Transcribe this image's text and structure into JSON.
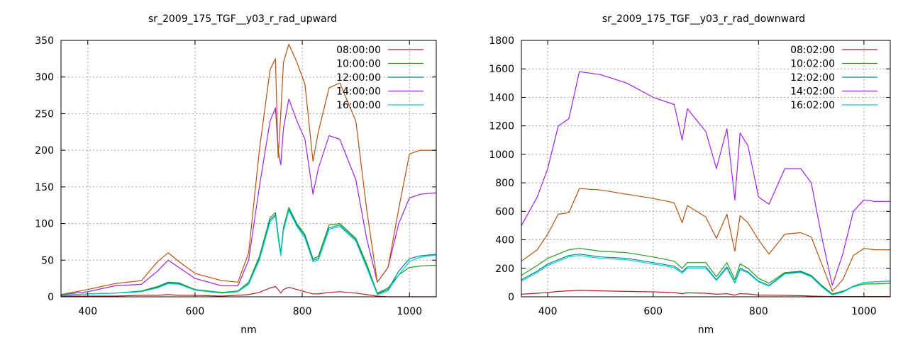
{
  "chart_data": [
    {
      "type": "line",
      "title": "sr_2009_175_TGF__y03_r_rad_upward",
      "xlabel": "nm",
      "ylabel": "",
      "xlim": [
        350,
        1050
      ],
      "ylim": [
        0,
        350
      ],
      "xticks": [
        400,
        600,
        800,
        1000
      ],
      "yticks": [
        0,
        50,
        100,
        150,
        200,
        250,
        300,
        350
      ],
      "grid": true,
      "legend_position": "top-right",
      "x": [
        350,
        400,
        450,
        500,
        530,
        550,
        570,
        600,
        650,
        680,
        700,
        720,
        740,
        750,
        755,
        760,
        765,
        775,
        790,
        805,
        820,
        830,
        850,
        870,
        900,
        920,
        940,
        960,
        980,
        1000,
        1020,
        1050
      ],
      "series": [
        {
          "name": "08:00:00",
          "color": "#b22222",
          "values": [
            1,
            1,
            1,
            2,
            2,
            3,
            2,
            2,
            1,
            2,
            3,
            6,
            12,
            14,
            10,
            5,
            10,
            13,
            10,
            7,
            4,
            4,
            6,
            7,
            5,
            3,
            1,
            0,
            0,
            0,
            0,
            0
          ]
        },
        {
          "name": "10:00:00",
          "color": "#1e9e1e",
          "values": [
            2,
            4,
            5,
            8,
            14,
            20,
            19,
            10,
            6,
            8,
            20,
            55,
            108,
            115,
            85,
            60,
            95,
            122,
            100,
            85,
            52,
            55,
            98,
            100,
            80,
            45,
            5,
            12,
            30,
            40,
            42,
            43
          ]
        },
        {
          "name": "12:00:00",
          "color": "#00868b",
          "values": [
            2,
            4,
            5,
            7,
            13,
            19,
            18,
            9,
            5,
            7,
            18,
            52,
            105,
            112,
            82,
            58,
            92,
            120,
            98,
            83,
            50,
            52,
            94,
            98,
            78,
            42,
            4,
            10,
            35,
            52,
            56,
            58
          ]
        },
        {
          "name": "14:00:00",
          "color": "#a020f0",
          "values": [
            3,
            7,
            15,
            17,
            35,
            50,
            40,
            25,
            15,
            15,
            50,
            150,
            240,
            258,
            200,
            180,
            230,
            270,
            240,
            215,
            140,
            175,
            220,
            215,
            160,
            80,
            20,
            40,
            100,
            135,
            140,
            142
          ]
        },
        {
          "name": "16:00:00",
          "color": "#00ced1",
          "values": [
            2,
            4,
            5,
            7,
            12,
            18,
            17,
            9,
            5,
            7,
            17,
            50,
            102,
            110,
            80,
            56,
            90,
            118,
            96,
            80,
            48,
            50,
            92,
            96,
            76,
            40,
            3,
            8,
            30,
            48,
            54,
            57
          ]
        },
        {
          "name": "",
          "color": "#b8520c",
          "values": [
            3,
            10,
            18,
            22,
            48,
            60,
            48,
            32,
            22,
            20,
            60,
            200,
            310,
            325,
            190,
            250,
            320,
            345,
            320,
            290,
            185,
            225,
            285,
            292,
            240,
            120,
            20,
            40,
            120,
            195,
            200,
            200
          ]
        }
      ]
    },
    {
      "type": "line",
      "title": "sr_2009_175_TGF__y03_r_rad_downward",
      "xlabel": "nm",
      "ylabel": "",
      "xlim": [
        350,
        1050
      ],
      "ylim": [
        0,
        1800
      ],
      "xticks": [
        400,
        600,
        800,
        1000
      ],
      "yticks": [
        0,
        200,
        400,
        600,
        800,
        1000,
        1200,
        1400,
        1600,
        1800
      ],
      "grid": true,
      "legend_position": "top-right",
      "x": [
        350,
        380,
        400,
        420,
        440,
        460,
        500,
        550,
        600,
        640,
        655,
        665,
        700,
        720,
        740,
        755,
        765,
        780,
        800,
        820,
        850,
        880,
        900,
        920,
        940,
        960,
        980,
        1000,
        1020,
        1050
      ],
      "series": [
        {
          "name": "08:02:00",
          "color": "#b22222",
          "values": [
            18,
            25,
            30,
            38,
            42,
            45,
            42,
            38,
            35,
            30,
            22,
            28,
            25,
            18,
            22,
            12,
            22,
            20,
            12,
            12,
            10,
            8,
            5,
            3,
            2,
            2,
            2,
            2,
            2,
            2
          ]
        },
        {
          "name": "10:02:00",
          "color": "#1e9e1e",
          "values": [
            150,
            220,
            270,
            300,
            330,
            340,
            320,
            310,
            280,
            250,
            200,
            240,
            240,
            140,
            240,
            120,
            230,
            200,
            130,
            95,
            170,
            180,
            150,
            80,
            20,
            40,
            70,
            90,
            90,
            95
          ]
        },
        {
          "name": "12:02:00",
          "color": "#00868b",
          "values": [
            120,
            180,
            230,
            260,
            290,
            300,
            280,
            270,
            240,
            215,
            175,
            210,
            210,
            120,
            210,
            100,
            200,
            175,
            110,
            80,
            165,
            175,
            145,
            75,
            15,
            35,
            75,
            100,
            105,
            110
          ]
        },
        {
          "name": "14:02:00",
          "color": "#a020f0",
          "values": [
            500,
            700,
            900,
            1200,
            1250,
            1580,
            1560,
            1500,
            1400,
            1350,
            1100,
            1320,
            1160,
            900,
            1180,
            680,
            1150,
            1060,
            700,
            650,
            900,
            900,
            800,
            420,
            80,
            300,
            600,
            680,
            670,
            670
          ]
        },
        {
          "name": "16:02:00",
          "color": "#00ced1",
          "values": [
            110,
            170,
            220,
            250,
            280,
            290,
            270,
            260,
            230,
            205,
            165,
            200,
            200,
            115,
            200,
            95,
            190,
            168,
            105,
            75,
            160,
            170,
            140,
            70,
            12,
            32,
            72,
            100,
            105,
            110
          ]
        },
        {
          "name": "",
          "color": "#b8520c",
          "values": [
            250,
            330,
            440,
            580,
            590,
            760,
            750,
            720,
            690,
            660,
            520,
            640,
            560,
            410,
            580,
            320,
            570,
            520,
            400,
            300,
            440,
            450,
            420,
            230,
            40,
            120,
            290,
            340,
            330,
            330
          ]
        }
      ]
    }
  ]
}
